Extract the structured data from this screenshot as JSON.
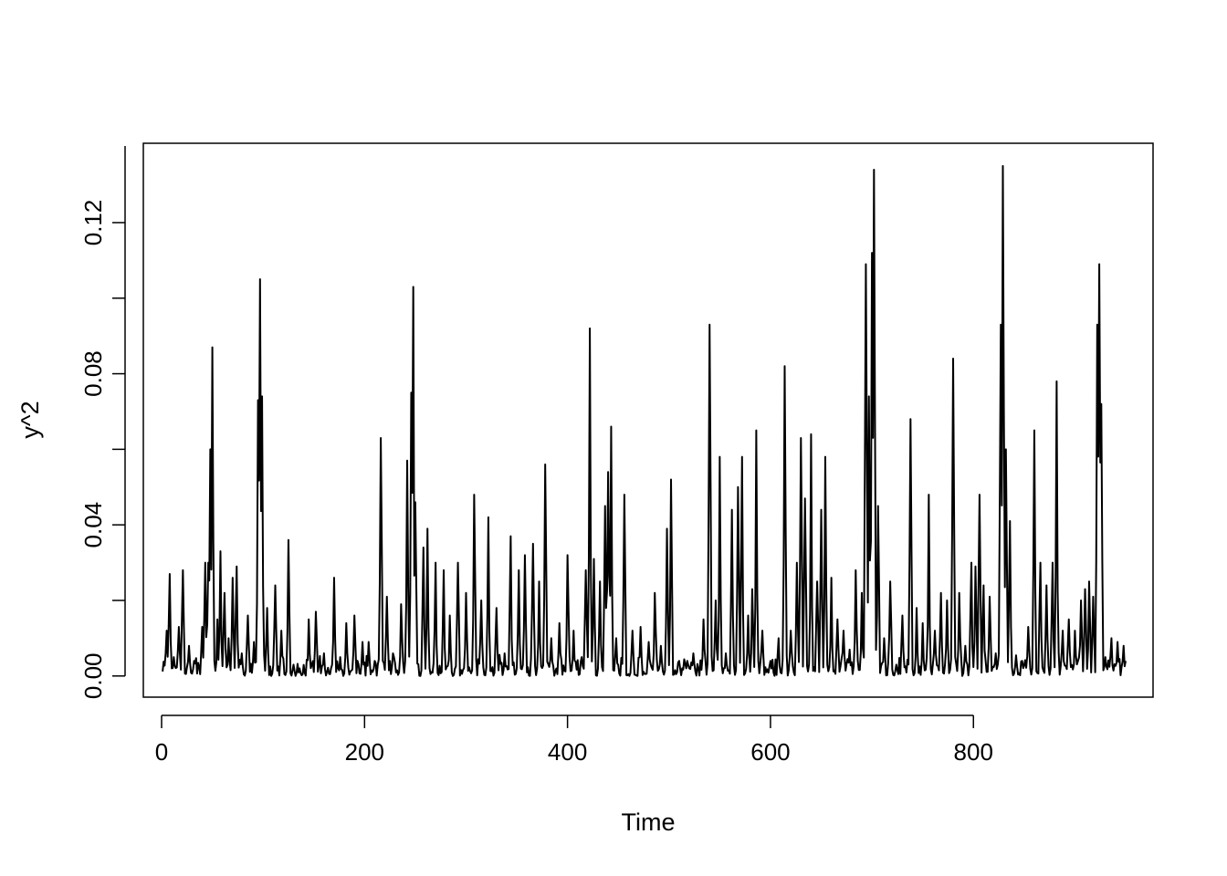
{
  "chart_data": {
    "type": "line",
    "xlabel": "Time",
    "ylabel": "y^2",
    "xlim": [
      -18,
      977
    ],
    "ylim": [
      -0.0056,
      0.141
    ],
    "x_ticks": [
      0,
      200,
      400,
      600,
      800
    ],
    "x_tick_labels": [
      "0",
      "200",
      "400",
      "600",
      "800"
    ],
    "y_ticks": [
      0.0,
      0.02,
      0.04,
      0.06,
      0.08,
      0.1,
      0.12
    ],
    "y_tick_labels": [
      "0.00",
      "",
      "0.04",
      "",
      "0.08",
      "",
      "0.12"
    ],
    "grid": false,
    "line_color": "#000000",
    "series": [
      {
        "x_start": 1,
        "x_step": 1,
        "n_points": 950,
        "peaks": [
          [
            5,
            0.012
          ],
          [
            8,
            0.027
          ],
          [
            12,
            0.005
          ],
          [
            17,
            0.013
          ],
          [
            21,
            0.028
          ],
          [
            27,
            0.008
          ],
          [
            32,
            0.004
          ],
          [
            40,
            0.013
          ],
          [
            43,
            0.03
          ],
          [
            46,
            0.03
          ],
          [
            48,
            0.06
          ],
          [
            50,
            0.087
          ],
          [
            55,
            0.015
          ],
          [
            58,
            0.033
          ],
          [
            62,
            0.022
          ],
          [
            66,
            0.01
          ],
          [
            70,
            0.026
          ],
          [
            74,
            0.029
          ],
          [
            79,
            0.006
          ],
          [
            85,
            0.016
          ],
          [
            91,
            0.009
          ],
          [
            95,
            0.073
          ],
          [
            97,
            0.105
          ],
          [
            99,
            0.074
          ],
          [
            104,
            0.018
          ],
          [
            112,
            0.024
          ],
          [
            118,
            0.012
          ],
          [
            125,
            0.036
          ],
          [
            130,
            0.003
          ],
          [
            136,
            0.002
          ],
          [
            145,
            0.015
          ],
          [
            152,
            0.017
          ],
          [
            160,
            0.006
          ],
          [
            170,
            0.026
          ],
          [
            176,
            0.005
          ],
          [
            182,
            0.014
          ],
          [
            190,
            0.016
          ],
          [
            198,
            0.009
          ],
          [
            204,
            0.009
          ],
          [
            210,
            0.004
          ],
          [
            216,
            0.063
          ],
          [
            222,
            0.021
          ],
          [
            228,
            0.006
          ],
          [
            236,
            0.019
          ],
          [
            242,
            0.057
          ],
          [
            246,
            0.075
          ],
          [
            248,
            0.103
          ],
          [
            250,
            0.046
          ],
          [
            258,
            0.034
          ],
          [
            262,
            0.039
          ],
          [
            270,
            0.03
          ],
          [
            278,
            0.028
          ],
          [
            284,
            0.016
          ],
          [
            292,
            0.03
          ],
          [
            300,
            0.022
          ],
          [
            308,
            0.048
          ],
          [
            315,
            0.02
          ],
          [
            322,
            0.042
          ],
          [
            330,
            0.018
          ],
          [
            338,
            0.006
          ],
          [
            344,
            0.037
          ],
          [
            352,
            0.028
          ],
          [
            358,
            0.032
          ],
          [
            366,
            0.035
          ],
          [
            372,
            0.025
          ],
          [
            378,
            0.056
          ],
          [
            384,
            0.01
          ],
          [
            392,
            0.014
          ],
          [
            400,
            0.032
          ],
          [
            406,
            0.012
          ],
          [
            414,
            0.005
          ],
          [
            418,
            0.028
          ],
          [
            422,
            0.092
          ],
          [
            426,
            0.031
          ],
          [
            432,
            0.025
          ],
          [
            437,
            0.045
          ],
          [
            440,
            0.054
          ],
          [
            443,
            0.066
          ],
          [
            448,
            0.01
          ],
          [
            456,
            0.048
          ],
          [
            464,
            0.012
          ],
          [
            472,
            0.013
          ],
          [
            480,
            0.009
          ],
          [
            486,
            0.022
          ],
          [
            492,
            0.008
          ],
          [
            498,
            0.039
          ],
          [
            502,
            0.052
          ],
          [
            510,
            0.004
          ],
          [
            518,
            0.004
          ],
          [
            524,
            0.006
          ],
          [
            534,
            0.015
          ],
          [
            540,
            0.093
          ],
          [
            546,
            0.02
          ],
          [
            550,
            0.058
          ],
          [
            556,
            0.006
          ],
          [
            562,
            0.044
          ],
          [
            568,
            0.05
          ],
          [
            572,
            0.058
          ],
          [
            578,
            0.016
          ],
          [
            582,
            0.023
          ],
          [
            586,
            0.065
          ],
          [
            592,
            0.012
          ],
          [
            600,
            0.004
          ],
          [
            608,
            0.01
          ],
          [
            614,
            0.082
          ],
          [
            620,
            0.012
          ],
          [
            626,
            0.03
          ],
          [
            630,
            0.063
          ],
          [
            634,
            0.047
          ],
          [
            640,
            0.064
          ],
          [
            646,
            0.025
          ],
          [
            650,
            0.044
          ],
          [
            654,
            0.058
          ],
          [
            660,
            0.026
          ],
          [
            666,
            0.015
          ],
          [
            672,
            0.012
          ],
          [
            678,
            0.007
          ],
          [
            684,
            0.028
          ],
          [
            690,
            0.022
          ],
          [
            694,
            0.109
          ],
          [
            697,
            0.074
          ],
          [
            700,
            0.112
          ],
          [
            702,
            0.134
          ],
          [
            706,
            0.045
          ],
          [
            712,
            0.01
          ],
          [
            718,
            0.025
          ],
          [
            724,
            0.003
          ],
          [
            730,
            0.016
          ],
          [
            738,
            0.068
          ],
          [
            744,
            0.018
          ],
          [
            750,
            0.014
          ],
          [
            756,
            0.048
          ],
          [
            762,
            0.012
          ],
          [
            768,
            0.022
          ],
          [
            774,
            0.02
          ],
          [
            780,
            0.084
          ],
          [
            786,
            0.022
          ],
          [
            792,
            0.008
          ],
          [
            798,
            0.03
          ],
          [
            802,
            0.029
          ],
          [
            806,
            0.048
          ],
          [
            810,
            0.024
          ],
          [
            816,
            0.021
          ],
          [
            822,
            0.006
          ],
          [
            827,
            0.093
          ],
          [
            829,
            0.135
          ],
          [
            832,
            0.06
          ],
          [
            836,
            0.041
          ],
          [
            842,
            0.004
          ],
          [
            848,
            0.004
          ],
          [
            854,
            0.013
          ],
          [
            860,
            0.065
          ],
          [
            866,
            0.03
          ],
          [
            872,
            0.024
          ],
          [
            878,
            0.03
          ],
          [
            882,
            0.078
          ],
          [
            888,
            0.012
          ],
          [
            894,
            0.015
          ],
          [
            900,
            0.012
          ],
          [
            906,
            0.02
          ],
          [
            910,
            0.023
          ],
          [
            914,
            0.025
          ],
          [
            918,
            0.021
          ],
          [
            922,
            0.093
          ],
          [
            924,
            0.109
          ],
          [
            926,
            0.072
          ],
          [
            930,
            0.005
          ],
          [
            936,
            0.01
          ],
          [
            942,
            0.009
          ],
          [
            948,
            0.008
          ]
        ]
      }
    ]
  }
}
